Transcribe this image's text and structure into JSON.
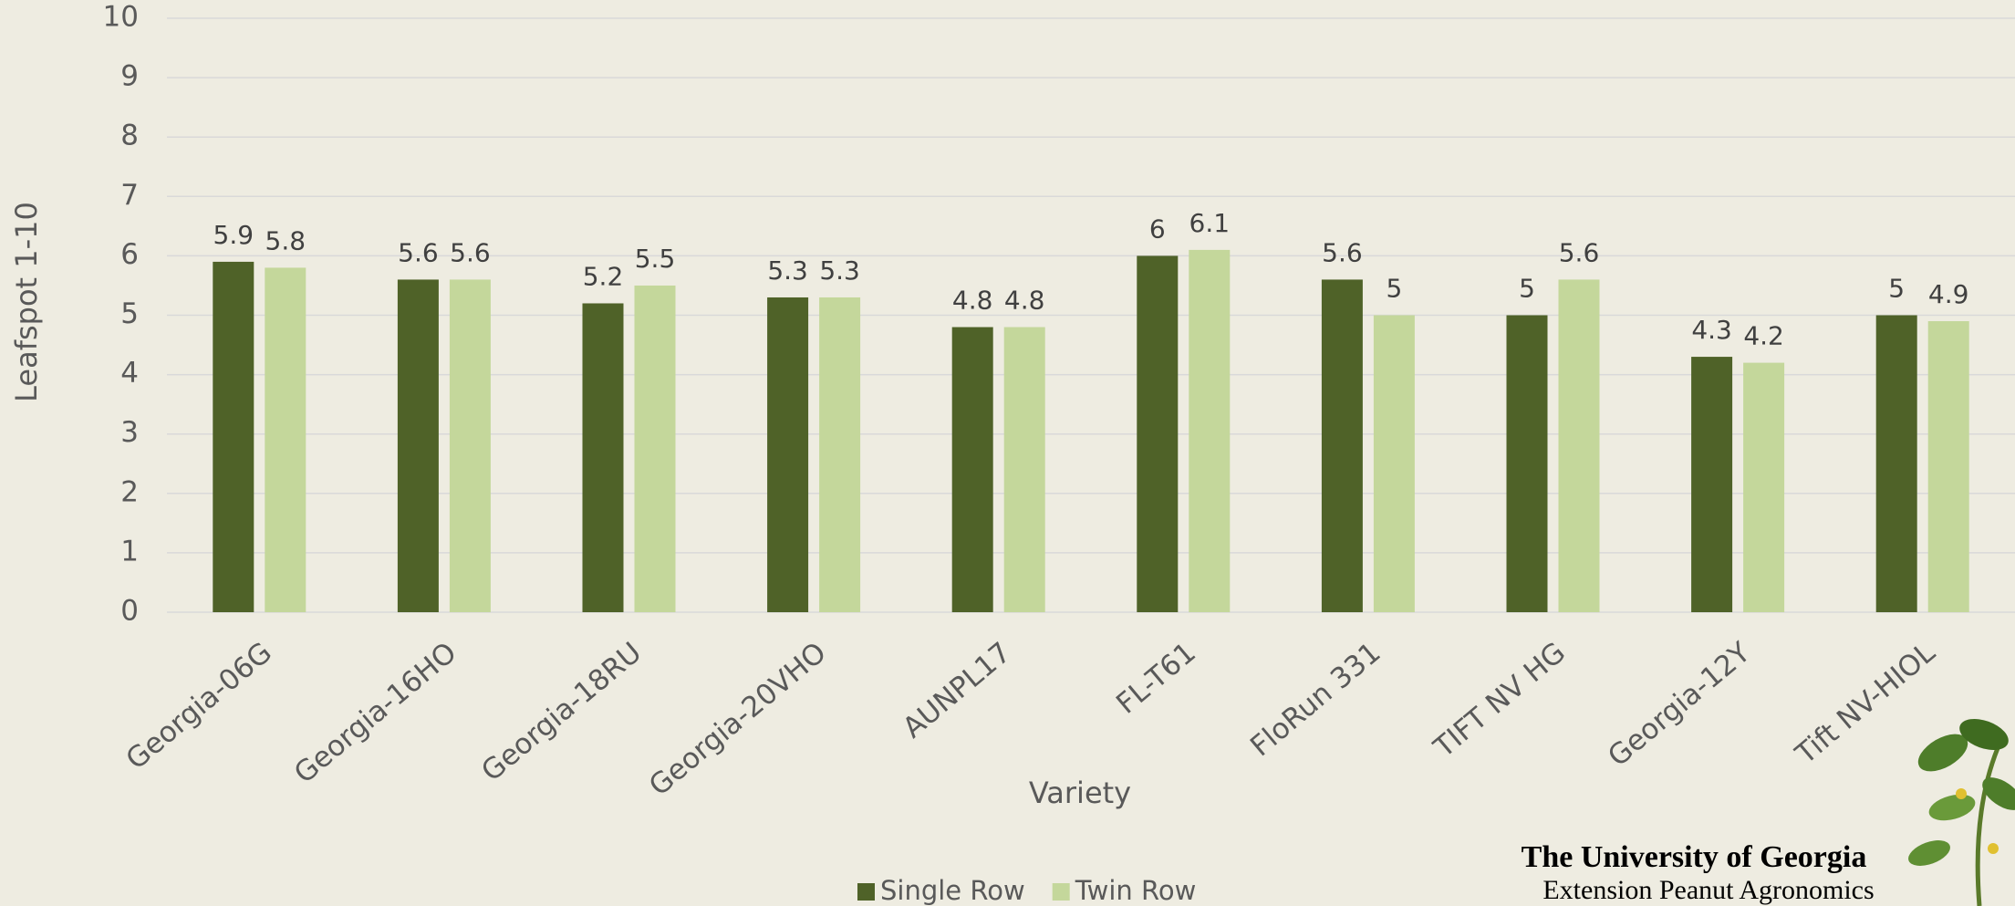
{
  "chart_data": {
    "type": "bar",
    "x_label": "Variety",
    "y_label": "Leafspot 1-10",
    "categories": [
      "Georgia-06G",
      "Georgia-16HO",
      "Georgia-18RU",
      "Georgia-20VHO",
      "AUNPL17",
      "FL-T61",
      "FloRun 331",
      "TIFT NV HG",
      "Georgia-12Y",
      "Tift NV-HIOL"
    ],
    "series": [
      {
        "name": "Single Row",
        "color": "#4f6228",
        "values": [
          5.9,
          5.6,
          5.2,
          5.3,
          4.8,
          6,
          5.6,
          5,
          4.3,
          5
        ]
      },
      {
        "name": "Twin Row",
        "color": "#c4d79b",
        "values": [
          5.8,
          5.6,
          5.5,
          5.3,
          4.8,
          6.1,
          5,
          5.6,
          4.2,
          4.9
        ]
      }
    ],
    "ylim": [
      0,
      10
    ],
    "yticks": [
      0,
      1,
      2,
      3,
      4,
      5,
      6,
      7,
      8,
      9,
      10
    ],
    "grid": true,
    "legend": "bottom"
  },
  "footer": {
    "title": "The University of Georgia",
    "subtitle": "Extension Peanut Agronomics"
  }
}
